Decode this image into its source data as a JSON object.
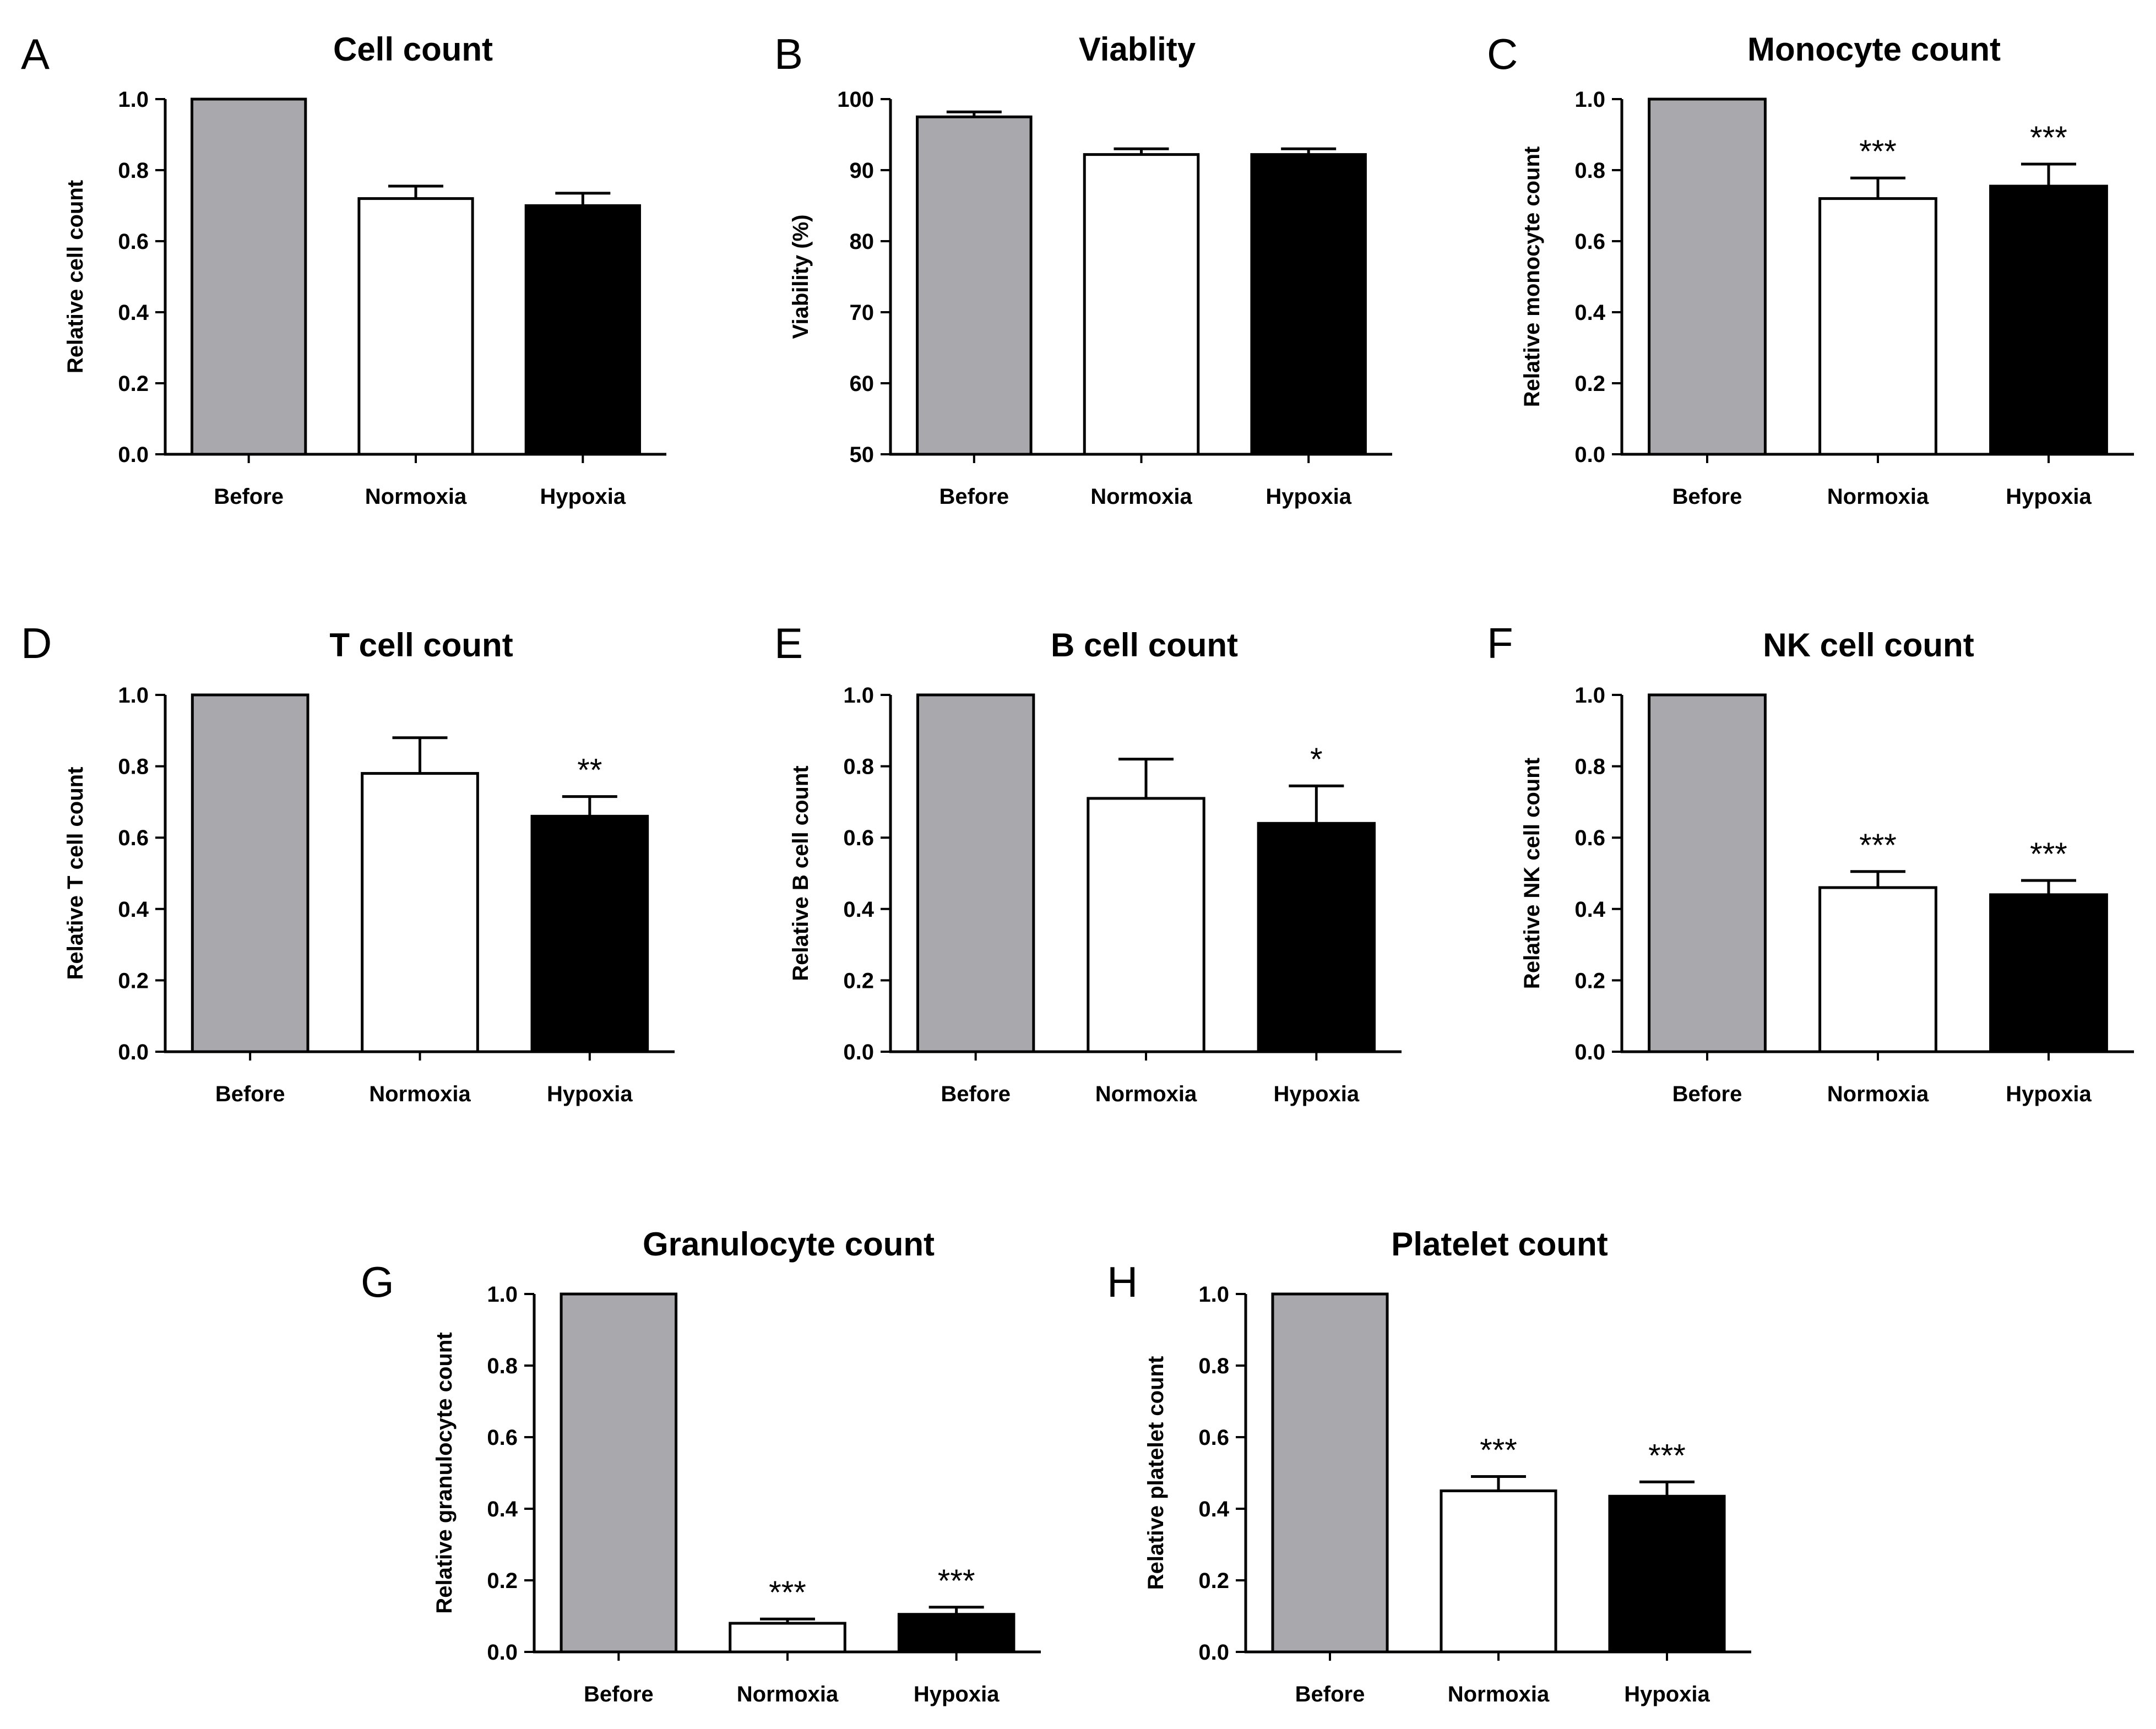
{
  "colors": {
    "before": "#a9a8ac",
    "normoxia": "#ffffff",
    "hypoxia": "#000000",
    "stroke": "#000000"
  },
  "chart_data": [
    {
      "panel": "A",
      "type": "bar",
      "title": "Cell count",
      "xlabel": "",
      "ylabel": "Relative cell count",
      "ylim": [
        0,
        1.0
      ],
      "yticks": [
        "0.0",
        "0.2",
        "0.4",
        "0.6",
        "0.8",
        "1.0"
      ],
      "categories": [
        "Before",
        "Normoxia",
        "Hypoxia"
      ],
      "values": [
        1.0,
        0.72,
        0.7
      ],
      "errors": [
        0,
        0.035,
        0.035
      ],
      "significance": [
        "",
        "",
        ""
      ]
    },
    {
      "panel": "B",
      "type": "bar",
      "title": "Viablity",
      "xlabel": "",
      "ylabel": "Viability (%)",
      "ylim": [
        50,
        100
      ],
      "yticks": [
        "50",
        "60",
        "70",
        "80",
        "90",
        "100"
      ],
      "categories": [
        "Before",
        "Normoxia",
        "Hypoxia"
      ],
      "values": [
        97.5,
        92.2,
        92.2
      ],
      "errors": [
        0.7,
        0.8,
        0.8
      ],
      "significance": [
        "",
        "",
        ""
      ]
    },
    {
      "panel": "C",
      "type": "bar",
      "title": "Monocyte count",
      "xlabel": "",
      "ylabel": "Relative monocyte count",
      "ylim": [
        0,
        1.0
      ],
      "yticks": [
        "0.0",
        "0.2",
        "0.4",
        "0.6",
        "0.8",
        "1.0"
      ],
      "categories": [
        "Before",
        "Normoxia",
        "Hypoxia"
      ],
      "values": [
        1.0,
        0.72,
        0.755
      ],
      "errors": [
        0,
        0.058,
        0.062
      ],
      "significance": [
        "",
        "***",
        "***"
      ]
    },
    {
      "panel": "D",
      "type": "bar",
      "title": "T cell count",
      "xlabel": "",
      "ylabel": "Relative T cell count",
      "ylim": [
        0,
        1.0
      ],
      "yticks": [
        "0.0",
        "0.2",
        "0.4",
        "0.6",
        "0.8",
        "1.0"
      ],
      "categories": [
        "Before",
        "Normoxia",
        "Hypoxia"
      ],
      "values": [
        1.0,
        0.78,
        0.66
      ],
      "errors": [
        0,
        0.1,
        0.055
      ],
      "significance": [
        "",
        "",
        "**"
      ]
    },
    {
      "panel": "E",
      "type": "bar",
      "title": "B cell count",
      "xlabel": "",
      "ylabel": "Relative B cell count",
      "ylim": [
        0,
        1.0
      ],
      "yticks": [
        "0.0",
        "0.2",
        "0.4",
        "0.6",
        "0.8",
        "1.0"
      ],
      "categories": [
        "Before",
        "Normoxia",
        "Hypoxia"
      ],
      "values": [
        1.0,
        0.71,
        0.64
      ],
      "errors": [
        0,
        0.11,
        0.105
      ],
      "significance": [
        "",
        "",
        "*"
      ]
    },
    {
      "panel": "F",
      "type": "bar",
      "title": "NK cell count",
      "xlabel": "",
      "ylabel": "Relative NK cell count",
      "ylim": [
        0,
        1.0
      ],
      "yticks": [
        "0.0",
        "0.2",
        "0.4",
        "0.6",
        "0.8",
        "1.0"
      ],
      "categories": [
        "Before",
        "Normoxia",
        "Hypoxia"
      ],
      "values": [
        1.0,
        0.46,
        0.44
      ],
      "errors": [
        0,
        0.045,
        0.04
      ],
      "significance": [
        "",
        "***",
        "***"
      ]
    },
    {
      "panel": "G",
      "type": "bar",
      "title": "Granulocyte count",
      "xlabel": "",
      "ylabel": "Relative granulocyte count",
      "ylim": [
        0,
        1.0
      ],
      "yticks": [
        "0.0",
        "0.2",
        "0.4",
        "0.6",
        "0.8",
        "1.0"
      ],
      "categories": [
        "Before",
        "Normoxia",
        "Hypoxia"
      ],
      "values": [
        1.0,
        0.08,
        0.105
      ],
      "errors": [
        0,
        0.012,
        0.02
      ],
      "significance": [
        "",
        "***",
        "***"
      ]
    },
    {
      "panel": "H",
      "type": "bar",
      "title": "Platelet count",
      "xlabel": "",
      "ylabel": "Relative platelet count",
      "ylim": [
        0,
        1.0
      ],
      "yticks": [
        "0.0",
        "0.2",
        "0.4",
        "0.6",
        "0.8",
        "1.0"
      ],
      "categories": [
        "Before",
        "Normoxia",
        "Hypoxia"
      ],
      "values": [
        1.0,
        0.45,
        0.435
      ],
      "errors": [
        0,
        0.04,
        0.04
      ],
      "significance": [
        "",
        "***",
        "***"
      ]
    }
  ]
}
